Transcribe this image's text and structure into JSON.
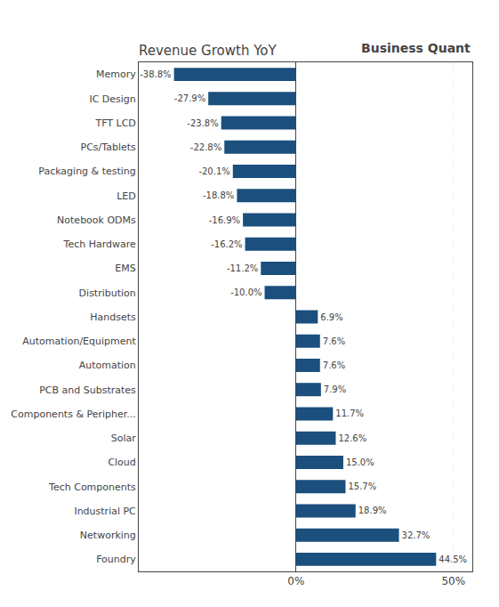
{
  "chart_data": {
    "type": "bar",
    "orientation": "horizontal",
    "title": "Revenue Growth YoY",
    "annotations": [
      "Business Quant"
    ],
    "categories": [
      "Memory",
      "IC Design",
      "TFT LCD",
      "PCs/Tablets",
      "Packaging & testing",
      "LED",
      "Notebook ODMs",
      "Tech Hardware",
      "EMS",
      "Distribution",
      "Handsets",
      "Automation/Equipment",
      "Automation",
      "PCB and Substrates",
      "Components & Peripher...",
      "Solar",
      "Cloud",
      "Tech Components",
      "Industrial PC",
      "Networking",
      "Foundry"
    ],
    "values": [
      -38.8,
      -27.9,
      -23.8,
      -22.8,
      -20.1,
      -18.8,
      -16.9,
      -16.2,
      -11.2,
      -10.0,
      6.9,
      7.6,
      7.6,
      7.9,
      11.7,
      12.6,
      15.0,
      15.7,
      18.9,
      32.7,
      44.5
    ],
    "value_labels": [
      "-38.8%",
      "-27.9%",
      "-23.8%",
      "-22.8%",
      "-20.1%",
      "-18.8%",
      "-16.9%",
      "-16.2%",
      "-11.2%",
      "-10.0%",
      "6.9%",
      "7.6%",
      "7.6%",
      "7.9%",
      "11.7%",
      "12.6%",
      "15.0%",
      "15.7%",
      "18.9%",
      "32.7%",
      "44.5%"
    ],
    "data_labels": true,
    "color": "#1b4f7e",
    "xlim": [
      -50,
      56
    ],
    "xticks": [
      {
        "value": 0,
        "label": "0%"
      },
      {
        "value": 50,
        "label": "50%"
      }
    ],
    "grid": true
  }
}
